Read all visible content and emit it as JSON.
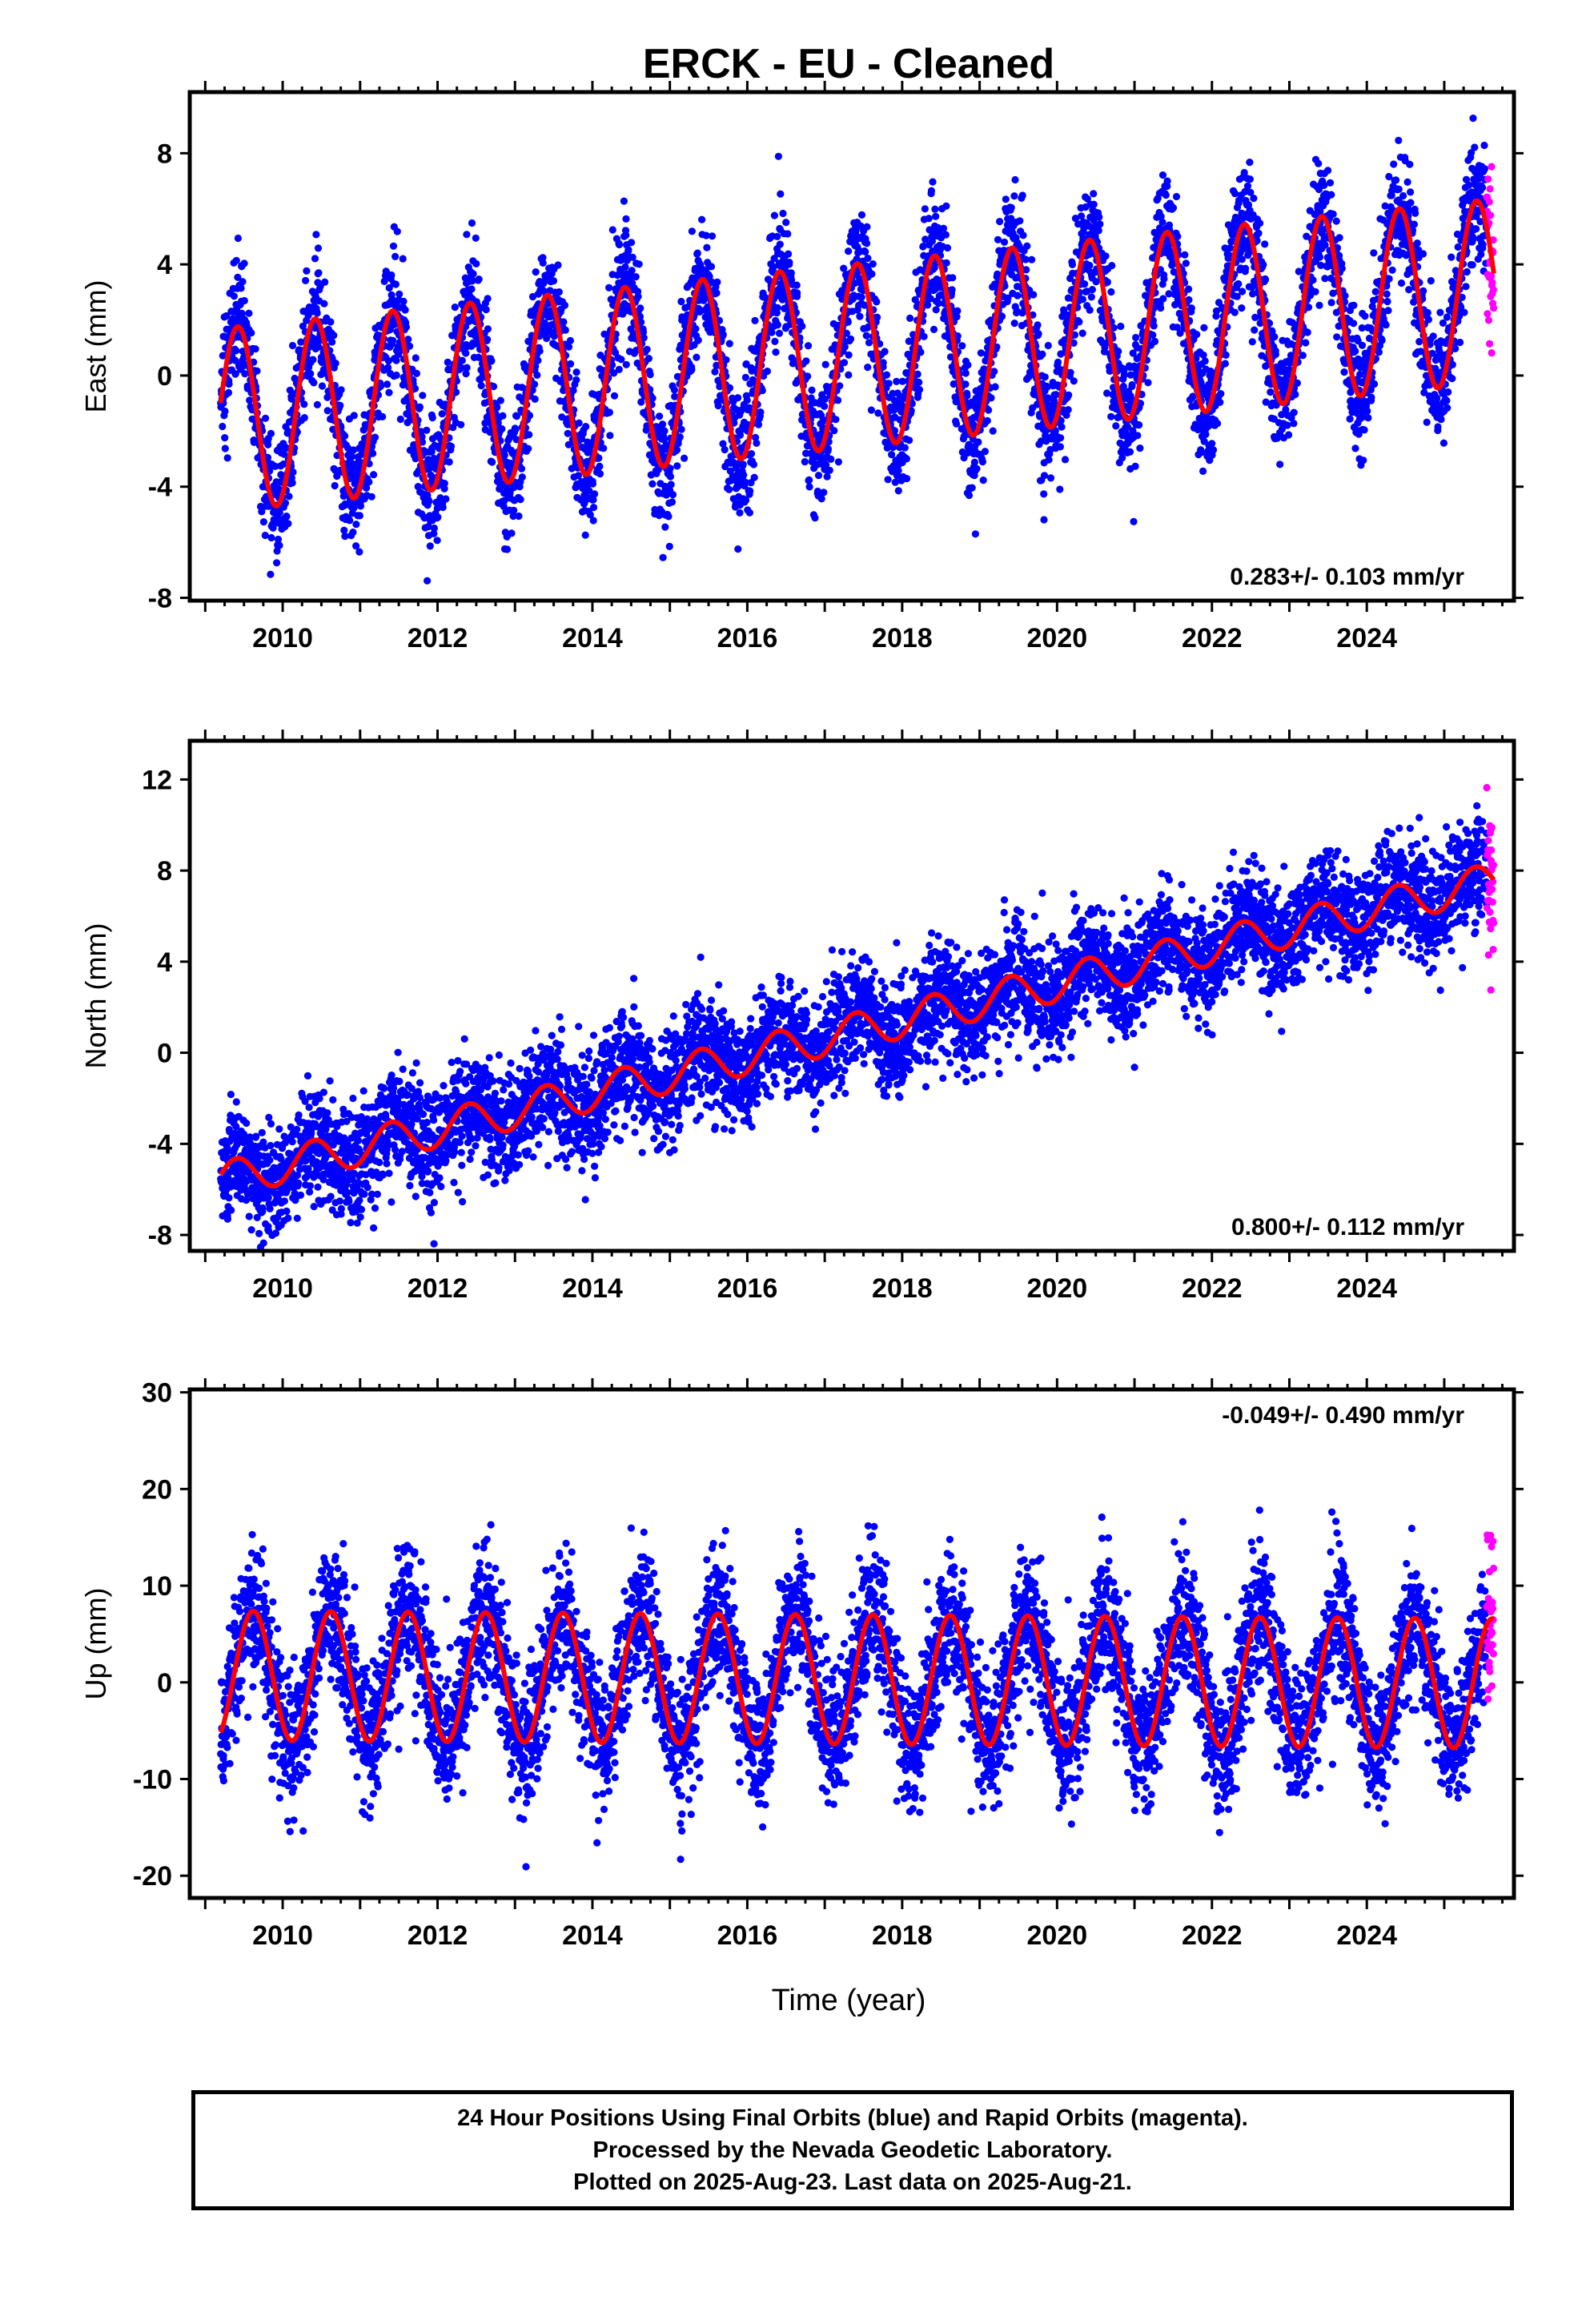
{
  "title": "ERCK  - EU - Cleaned",
  "xlabel": "Time (year)",
  "colors": {
    "final": "#0000ff",
    "rapid": "#ff00ff",
    "fit": "#ff0000",
    "frame": "#000000"
  },
  "footer": {
    "line1": "24 Hour Positions Using Final Orbits (blue) and Rapid Orbits (magenta).",
    "line2": "Processed by the Nevada Geodetic Laboratory.",
    "line3": "Plotted on 2025-Aug-23. Last data on 2025-Aug-21."
  },
  "chart_data": [
    {
      "type": "scatter",
      "component": "east",
      "ylabel": "East (mm)",
      "xlim": [
        2008.8,
        2025.9
      ],
      "ylim": [
        -8.1,
        10.2
      ],
      "xticks": [
        2010,
        2012,
        2014,
        2016,
        2018,
        2020,
        2022,
        2024
      ],
      "yticks": [
        -8,
        -4,
        0,
        4,
        8
      ],
      "rate_label": "0.283+/- 0.103 mm/yr",
      "rate_position": "bottom-right",
      "grid": false,
      "data_span": [
        2009.2,
        2025.55
      ],
      "rapid_span": [
        2025.55,
        2025.64
      ],
      "trend": {
        "base": -1.6,
        "rate": 0.283,
        "ref_year": 2009.2
      },
      "seasonal": {
        "annual_amplitude": 3.3,
        "phase_peak_year_fraction": 0.42,
        "scatter_sd": 1.1
      },
      "series": [
        {
          "name": "Final Orbits (blue)",
          "color": "#0000ff"
        },
        {
          "name": "Rapid Orbits (magenta)",
          "color": "#ff00ff"
        }
      ],
      "fit_samples": {
        "x": [
          2009.2,
          2009.45,
          2010.0,
          2010.42,
          2011.0,
          2011.42,
          2012.0,
          2012.42,
          2013.0,
          2013.42,
          2014.0,
          2014.42,
          2015.0,
          2015.42,
          2016.0,
          2016.42,
          2017.0,
          2017.42,
          2018.0,
          2018.42,
          2019.0,
          2019.42,
          2020.0,
          2020.42,
          2021.0,
          2021.42,
          2022.0,
          2022.42,
          2023.0,
          2023.42,
          2024.0,
          2024.42,
          2025.0,
          2025.42,
          2025.64
        ],
        "y": [
          -1.0,
          1.0,
          -4.8,
          1.4,
          -4.5,
          1.7,
          -4.3,
          2.0,
          -4.0,
          2.3,
          -3.8,
          2.5,
          -3.4,
          2.8,
          -3.2,
          3.1,
          -2.9,
          3.4,
          -2.6,
          3.6,
          -2.3,
          3.9,
          -2.0,
          4.2,
          -1.7,
          4.5,
          -1.5,
          4.7,
          -1.2,
          5.0,
          -0.9,
          5.3,
          -0.6,
          5.5,
          2.5
        ]
      }
    },
    {
      "type": "scatter",
      "component": "north",
      "ylabel": "North (mm)",
      "xlim": [
        2008.8,
        2025.9
      ],
      "ylim": [
        -8.7,
        13.7
      ],
      "xticks": [
        2010,
        2012,
        2014,
        2016,
        2018,
        2020,
        2022,
        2024
      ],
      "yticks": [
        -8,
        -4,
        0,
        4,
        8,
        12
      ],
      "rate_label": "0.800+/- 0.112 mm/yr",
      "rate_position": "bottom-right",
      "grid": false,
      "data_span": [
        2009.2,
        2025.55
      ],
      "rapid_span": [
        2025.55,
        2025.64
      ],
      "trend": {
        "base": -5.6,
        "rate": 0.8,
        "ref_year": 2009.2
      },
      "seasonal": {
        "annual_amplitude": 0.8,
        "phase_peak_year_fraction": 0.4,
        "scatter_sd": 1.2
      },
      "series": [
        {
          "name": "Final Orbits (blue)",
          "color": "#0000ff"
        },
        {
          "name": "Rapid Orbits (magenta)",
          "color": "#ff00ff"
        }
      ],
      "fit_samples": {
        "x": [
          2009.2,
          2010.0,
          2011.0,
          2012.0,
          2013.0,
          2014.0,
          2015.0,
          2016.0,
          2017.0,
          2018.0,
          2019.0,
          2020.0,
          2021.0,
          2022.0,
          2023.0,
          2024.0,
          2025.0,
          2025.64
        ],
        "y": [
          -6.5,
          -5.5,
          -4.8,
          -4.0,
          -3.2,
          -2.5,
          -1.5,
          -1.0,
          0.0,
          0.8,
          1.8,
          2.5,
          3.2,
          4.2,
          5.0,
          5.8,
          6.5,
          7.5
        ]
      }
    },
    {
      "type": "scatter",
      "component": "up",
      "ylabel": "Up (mm)",
      "xlim": [
        2008.8,
        2025.9
      ],
      "ylim": [
        -22.3,
        30.3
      ],
      "xticks": [
        2010,
        2012,
        2014,
        2016,
        2018,
        2020,
        2022,
        2024
      ],
      "yticks": [
        -20,
        -10,
        0,
        10,
        20,
        30
      ],
      "rate_label": "-0.049+/- 0.490 mm/yr",
      "rate_position": "top-right",
      "grid": false,
      "data_span": [
        2009.2,
        2025.55
      ],
      "rapid_span": [
        2025.55,
        2025.64
      ],
      "trend": {
        "base": 0.7,
        "rate": -0.049,
        "ref_year": 2009.2
      },
      "seasonal": {
        "annual_amplitude": 6.7,
        "phase_peak_year_fraction": 0.62,
        "scatter_sd": 3.6
      },
      "series": [
        {
          "name": "Final Orbits (blue)",
          "color": "#0000ff"
        },
        {
          "name": "Rapid Orbits (magenta)",
          "color": "#ff00ff"
        }
      ],
      "fit_samples": {
        "x": [
          2009.2,
          2009.62,
          2010.12,
          2010.62,
          2011.12,
          2011.62,
          2012.12,
          2012.62,
          2013.12,
          2013.62,
          2014.12,
          2014.62,
          2015.12,
          2015.62,
          2016.12,
          2016.62,
          2017.12,
          2017.62,
          2018.12,
          2018.62,
          2019.12,
          2019.62,
          2020.12,
          2020.62,
          2021.12,
          2021.62,
          2022.12,
          2022.62,
          2023.12,
          2023.62,
          2024.12,
          2024.62,
          2025.12,
          2025.64
        ],
        "y": [
          -4.5,
          7.4,
          -6.0,
          7.3,
          -6.0,
          7.3,
          -6.1,
          7.3,
          -6.1,
          7.2,
          -6.1,
          7.2,
          -6.2,
          7.2,
          -6.2,
          7.1,
          -6.2,
          7.1,
          -6.3,
          7.1,
          -6.3,
          7.0,
          -6.3,
          7.0,
          -6.4,
          7.0,
          -6.4,
          6.9,
          -6.4,
          6.9,
          -6.5,
          6.9,
          -6.5,
          6.0
        ]
      }
    }
  ]
}
